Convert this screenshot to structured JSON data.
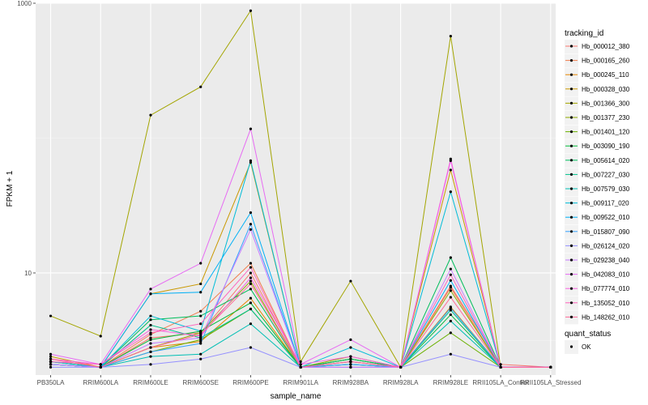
{
  "chart_data": {
    "type": "line",
    "xlabel": "sample_name",
    "ylabel": "FPKM + 1",
    "y_scale": "log10",
    "ylim": [
      1.75,
      1000
    ],
    "y_ticks": [
      {
        "value": 10,
        "label": "10"
      },
      {
        "value": 1000,
        "label": "1000"
      }
    ],
    "categories": [
      "PB350LA",
      "RRIM600LA",
      "RRIM600LE",
      "RRIM600SE",
      "RRIM600PE",
      "RRIM901LA",
      "RRIM928BA",
      "RRIM928LA",
      "RRIM928LE",
      "RRII105LA_Control",
      "RRII105LA_Stressed"
    ],
    "grid": true,
    "background": "#ebebeb",
    "point_color": "#000000",
    "legend": {
      "position": "right",
      "colour_title": "tracking_id",
      "shape_title": "quant_status",
      "shape_entries": [
        "OK"
      ]
    },
    "series": [
      {
        "name": "Hb_000012_380",
        "color": "#F8766D",
        "values": [
          2.3,
          2.0,
          3.3,
          3.6,
          10.0,
          2.0,
          2.2,
          2.0,
          8.0,
          2.1,
          2.0
        ]
      },
      {
        "name": "Hb_000165_260",
        "color": "#F07E4E",
        "values": [
          2.2,
          2.0,
          3.5,
          5.2,
          11.8,
          2.0,
          2.1,
          2.0,
          7.8,
          2.0,
          2.0
        ]
      },
      {
        "name": "Hb_000245_110",
        "color": "#E58700",
        "values": [
          2.1,
          2.0,
          2.8,
          3.1,
          6.5,
          2.0,
          2.0,
          2.0,
          5.6,
          2.0,
          2.0
        ]
      },
      {
        "name": "Hb_000328_030",
        "color": "#C99800",
        "values": [
          2.4,
          2.0,
          7.0,
          8.3,
          66.0,
          2.0,
          2.3,
          2.0,
          58.0,
          2.0,
          2.0
        ]
      },
      {
        "name": "Hb_001366_300",
        "color": "#A3A500",
        "values": [
          4.8,
          3.4,
          148.0,
          240.0,
          880.0,
          2.2,
          8.7,
          2.0,
          570.0,
          2.0,
          2.0
        ]
      },
      {
        "name": "Hb_001377_230",
        "color": "#8FAA00",
        "values": [
          2.1,
          2.0,
          2.8,
          3.6,
          8.7,
          2.0,
          2.4,
          2.0,
          7.4,
          2.0,
          2.0
        ]
      },
      {
        "name": "Hb_001401_120",
        "color": "#6BB100",
        "values": [
          2.2,
          2.0,
          2.6,
          3.2,
          5.4,
          2.0,
          2.2,
          2.0,
          3.6,
          2.0,
          2.0
        ]
      },
      {
        "name": "Hb_003090_190",
        "color": "#00BA38",
        "values": [
          2.1,
          2.0,
          3.2,
          3.7,
          6.0,
          2.0,
          2.3,
          2.0,
          4.9,
          2.0,
          2.0
        ]
      },
      {
        "name": "Hb_005614_020",
        "color": "#00BD5C",
        "values": [
          2.2,
          2.0,
          4.5,
          4.8,
          7.6,
          2.0,
          2.3,
          2.0,
          13.0,
          2.0,
          2.0
        ]
      },
      {
        "name": "Hb_007227_030",
        "color": "#00C08B",
        "values": [
          2.1,
          2.0,
          4.1,
          3.3,
          5.4,
          2.0,
          2.1,
          2.0,
          5.3,
          2.0,
          2.0
        ]
      },
      {
        "name": "Hb_007579_030",
        "color": "#00BFB4",
        "values": [
          2.1,
          2.0,
          2.4,
          2.5,
          4.2,
          2.0,
          2.1,
          2.0,
          4.4,
          2.0,
          2.0
        ]
      },
      {
        "name": "Hb_009117_020",
        "color": "#00BCD8",
        "values": [
          2.2,
          2.0,
          4.8,
          3.7,
          68.0,
          2.0,
          2.8,
          2.0,
          40.0,
          2.0,
          2.0
        ]
      },
      {
        "name": "Hb_009522_010",
        "color": "#00B0F6",
        "values": [
          2.1,
          2.0,
          7.0,
          7.2,
          28.0,
          2.0,
          2.2,
          2.0,
          8.8,
          2.0,
          2.0
        ]
      },
      {
        "name": "Hb_015807_090",
        "color": "#35A2FF",
        "values": [
          2.1,
          2.0,
          2.6,
          3.0,
          23.0,
          2.0,
          2.1,
          2.0,
          5.5,
          2.0,
          2.0
        ]
      },
      {
        "name": "Hb_026124_020",
        "color": "#9590FF",
        "values": [
          2.0,
          2.0,
          2.1,
          2.3,
          2.8,
          2.0,
          2.0,
          2.0,
          2.5,
          2.0,
          2.0
        ]
      },
      {
        "name": "Hb_029238_040",
        "color": "#C77CFF",
        "values": [
          2.1,
          2.0,
          3.0,
          3.3,
          21.0,
          2.0,
          2.0,
          2.0,
          10.7,
          2.0,
          2.0
        ]
      },
      {
        "name": "Hb_042083_010",
        "color": "#E76BF3",
        "values": [
          2.5,
          2.1,
          7.6,
          11.8,
          117.0,
          2.1,
          3.2,
          2.0,
          68.0,
          2.0,
          2.0
        ]
      },
      {
        "name": "Hb_077774_010",
        "color": "#F763E0",
        "values": [
          2.3,
          2.1,
          3.8,
          3.4,
          9.2,
          2.1,
          2.4,
          2.0,
          70.0,
          2.0,
          2.0
        ]
      },
      {
        "name": "Hb_135052_010",
        "color": "#FF62BC",
        "values": [
          2.2,
          2.1,
          3.6,
          4.2,
          11.0,
          2.0,
          2.2,
          2.0,
          9.7,
          2.0,
          2.0
        ]
      },
      {
        "name": "Hb_148262_010",
        "color": "#FF6A98",
        "values": [
          2.3,
          2.0,
          2.8,
          3.5,
          8.3,
          2.0,
          2.2,
          2.0,
          6.6,
          2.0,
          2.0
        ]
      }
    ]
  }
}
